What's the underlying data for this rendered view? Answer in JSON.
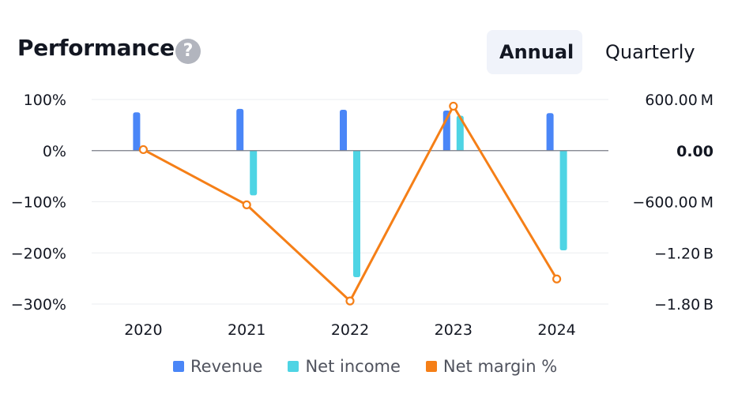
{
  "header": {
    "title": "Performance",
    "help_glyph": "?",
    "tabs": [
      {
        "label": "Annual",
        "active": true
      },
      {
        "label": "Quarterly",
        "active": false
      }
    ]
  },
  "colors": {
    "revenue": "#4a86f7",
    "net_income": "#4ed4e4",
    "net_margin": "#f57f17",
    "zero_line": "#787b86",
    "grid": "#ebedf0"
  },
  "chart_data": {
    "type": "bar",
    "categories": [
      "2020",
      "2021",
      "2022",
      "2023",
      "2024"
    ],
    "left_axis": {
      "unit": "%",
      "ticks": [
        "100%",
        "0%",
        "−100%",
        "−200%",
        "−300%"
      ],
      "tick_values": [
        100,
        0,
        -100,
        -200,
        -300
      ],
      "range": [
        -300,
        100
      ]
    },
    "right_axis": {
      "ticks": [
        "600.00 M",
        "0.00",
        "−600.00 M",
        "−1.20 B",
        "−1.80 B"
      ],
      "tick_values": [
        600,
        0,
        -600,
        -1200,
        -1800
      ],
      "range": [
        -1800,
        600
      ],
      "unit_note": "millions"
    },
    "series": [
      {
        "name": "Revenue",
        "type": "bar",
        "axis": "right",
        "color": "#4a86f7",
        "values": [
          450,
          490,
          480,
          470,
          440
        ]
      },
      {
        "name": "Net income",
        "type": "bar",
        "axis": "right",
        "color": "#4ed4e4",
        "values": [
          0,
          -525,
          -1485,
          410,
          -1170
        ]
      },
      {
        "name": "Net margin %",
        "type": "line",
        "axis": "left",
        "color": "#f57f17",
        "values": [
          2,
          -106,
          -294,
          87,
          -251
        ]
      }
    ],
    "grid": true,
    "legend": "bottom-center"
  }
}
